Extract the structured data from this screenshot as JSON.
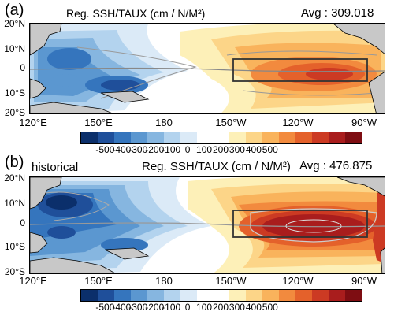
{
  "panels": [
    {
      "label": "(a)",
      "title": "Reg. SSH/TAUX (cm / N/M²)",
      "avg": "Avg : 309.018",
      "tag": ""
    },
    {
      "label": "(b)",
      "title": "Reg. SSH/TAUX (cm / N/M²)",
      "avg": "Avg : 476.875",
      "tag": "historical"
    }
  ],
  "lat_labels": [
    "20°N",
    "10°N",
    "0",
    "10°S",
    "20°S"
  ],
  "lon_labels": [
    "120°E",
    "150°E",
    "180",
    "150°W",
    "120°W",
    "90°W"
  ],
  "colorbar": {
    "ticks": [
      "-500",
      "-400",
      "-300",
      "-200",
      "-100",
      "0",
      "100",
      "200",
      "300",
      "400",
      "500"
    ],
    "colors": [
      "#0b2f6b",
      "#1f4f9a",
      "#3575bd",
      "#5b97d0",
      "#86b6e0",
      "#b3d3ee",
      "#dbeaf7",
      "#ffffff",
      "#ffffff",
      "#fdf0b8",
      "#fcd588",
      "#f9b35c",
      "#f28a3e",
      "#e4612b",
      "#cc3a23",
      "#a91d1d",
      "#7e0d12"
    ]
  },
  "land_color": "#c8c8c8",
  "box_color": "#333333"
}
